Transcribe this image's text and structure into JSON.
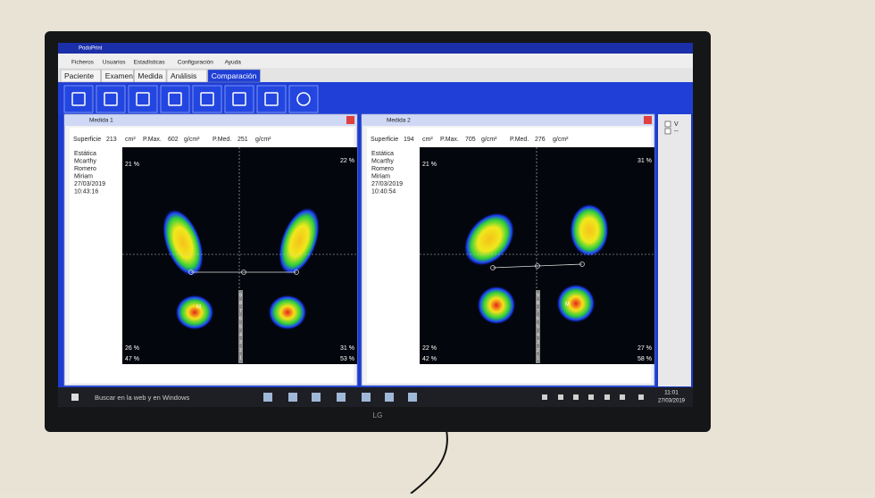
{
  "window": {
    "title": "PodoPrint",
    "menu": [
      "Ficheros",
      "Usuarios",
      "Estadísticas",
      "Configuración",
      "Ayuda"
    ],
    "tabs": [
      "Paciente",
      "Examen",
      "Medida",
      "Análisis",
      "Comparación"
    ]
  },
  "panels": [
    {
      "title": "Medida 1",
      "superficie_label": "Superficie",
      "superficie": "213",
      "superficie_unit": "cm²",
      "pmax_label": "P.Max.",
      "pmax": "602",
      "pmax_unit": "g/cm²",
      "pmed_label": "P.Med.",
      "pmed": "251",
      "pmed_unit": "g/cm²",
      "info": [
        "Estática",
        "Mcarthy",
        "Romero",
        "Miriam",
        "27/03/2019",
        "10:43:16"
      ],
      "top_left": "21 %",
      "top_right": "22 %",
      "bottom_left": "26 %",
      "bottom_right": "31 %",
      "total_left": "47 %",
      "total_right": "53 %",
      "marker": "M",
      "scale": [
        "9",
        "8",
        "7",
        "6",
        "5",
        "4",
        "3",
        "2",
        "1"
      ]
    },
    {
      "title": "Medida 2",
      "superficie_label": "Superficie",
      "superficie": "194",
      "superficie_unit": "cm²",
      "pmax_label": "P.Max.",
      "pmax": "705",
      "pmax_unit": "g/cm²",
      "pmed_label": "P.Med.",
      "pmed": "276",
      "pmed_unit": "g/cm²",
      "info": [
        "Estática",
        "Mcarthy",
        "Romero",
        "Miriam",
        "27/03/2019",
        "10:40:54"
      ],
      "top_left": "21 %",
      "top_right": "31 %",
      "bottom_left": "22 %",
      "bottom_right": "27 %",
      "total_left": "42 %",
      "total_right": "58 %",
      "marker": "M",
      "scale": [
        "9",
        "8",
        "7",
        "6",
        "5",
        "4",
        "3",
        "2",
        "1"
      ]
    }
  ],
  "side_panel": [
    "V",
    "--"
  ],
  "taskbar": {
    "search": "Buscar en la web y en Windows",
    "time": "11:01",
    "date": "27/03/2019"
  },
  "monitor_brand": "LG"
}
